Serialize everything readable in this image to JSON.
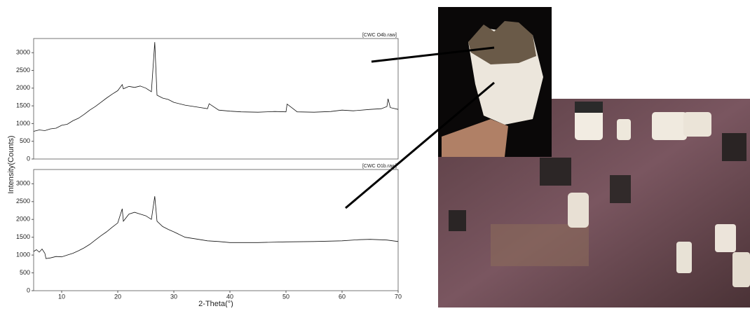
{
  "chart_data": [
    {
      "type": "line",
      "annotation": "[CWC O4b.raw]",
      "y_label": "Intensity(Counts)",
      "color": "#111111",
      "x": [
        5,
        6,
        7,
        8,
        9,
        10,
        11,
        12,
        13,
        14,
        15,
        16,
        17,
        18,
        19,
        20,
        20.8,
        21,
        22,
        23,
        24,
        25,
        26,
        26.6,
        27,
        28,
        29,
        30,
        32,
        34,
        36,
        36.3,
        38,
        40,
        42,
        45,
        48,
        50,
        50.2,
        52,
        55,
        58,
        60,
        62,
        65,
        67,
        68,
        68.2,
        68.6,
        70
      ],
      "values": [
        780,
        820,
        800,
        850,
        870,
        950,
        980,
        1080,
        1150,
        1260,
        1380,
        1480,
        1600,
        1720,
        1830,
        1930,
        2100,
        1980,
        2050,
        2020,
        2060,
        2000,
        1900,
        3300,
        1800,
        1720,
        1680,
        1600,
        1520,
        1470,
        1420,
        1560,
        1380,
        1350,
        1330,
        1320,
        1340,
        1330,
        1550,
        1330,
        1320,
        1340,
        1380,
        1360,
        1400,
        1420,
        1480,
        1700,
        1450,
        1400
      ],
      "xlim": [
        5,
        70
      ],
      "ylim": [
        0,
        3400
      ],
      "yticks": [
        0,
        500,
        1000,
        1500,
        2000,
        2500,
        3000
      ]
    },
    {
      "type": "line",
      "annotation": "[CWC O1b.raw]",
      "x_label": "2-Theta(°)",
      "color": "#111111",
      "x": [
        5,
        5.5,
        6,
        6.5,
        7,
        7.2,
        8,
        9,
        10,
        11,
        12,
        13,
        14,
        15,
        16,
        17,
        18,
        19,
        20,
        20.8,
        21,
        22,
        23,
        24,
        25,
        26,
        26.6,
        27,
        28,
        29,
        30,
        32,
        34,
        36,
        38,
        40,
        45,
        50,
        55,
        60,
        63,
        65,
        68,
        70
      ],
      "values": [
        1100,
        1150,
        1080,
        1170,
        1050,
        900,
        920,
        960,
        950,
        1000,
        1050,
        1120,
        1200,
        1300,
        1420,
        1540,
        1650,
        1780,
        1900,
        2300,
        1950,
        2150,
        2200,
        2150,
        2100,
        2000,
        2650,
        1950,
        1800,
        1720,
        1650,
        1500,
        1450,
        1400,
        1380,
        1350,
        1350,
        1370,
        1380,
        1400,
        1430,
        1440,
        1420,
        1380
      ],
      "xlim": [
        5,
        70
      ],
      "ylim": [
        0,
        3400
      ],
      "yticks": [
        0,
        500,
        1000,
        1500,
        2000,
        2500,
        3000
      ],
      "xticks": [
        10,
        20,
        30,
        40,
        50,
        60,
        70
      ]
    }
  ]
}
